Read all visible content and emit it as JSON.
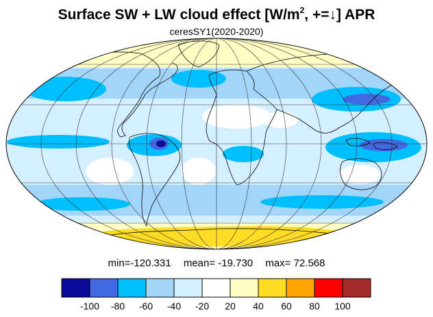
{
  "header": {
    "title_prefix": "Surface SW + LW cloud effect [W/m",
    "title_sup": "2",
    "title_suffix": ", +=↓]  APR",
    "subtitle": "ceresSY1(2020-2020)"
  },
  "stats": {
    "min": "min=-120.331",
    "mean": "mean= -19.730",
    "max": "max=  72.568"
  },
  "colorbar": {
    "colors": [
      "#0a0a9a",
      "#4169e1",
      "#00bfff",
      "#a3d5fb",
      "#d4efff",
      "#ffffff",
      "#ffffc6",
      "#ffdc26",
      "#ffa500",
      "#ff0000",
      "#a52a2a"
    ],
    "tick_labels": [
      "-100",
      "-80",
      "-60",
      "-40",
      "-20",
      "20",
      "40",
      "60",
      "80",
      "100"
    ]
  },
  "map": {
    "projection": "mollweide",
    "graticule": "30-degree",
    "ocean_background_color": "#d4efff",
    "land_outline_color": "#000000"
  }
}
